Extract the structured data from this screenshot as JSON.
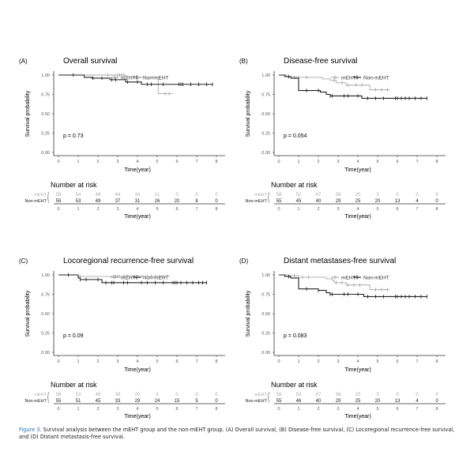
{
  "colors": {
    "mEHT": "#a8a8a8",
    "Non-mEHT": "#222222",
    "figure_label": "#2a6ebb"
  },
  "caption": {
    "label": "Figure 3.",
    "text": "Survival analysis between the mEHT group and the non-mEHT group. (A) Overall survival, (B) Disease-free survival, (C) Locoregional recurrence-free survival, and (D) Distant metastasis-free survival."
  },
  "chart_data": [
    {
      "type": "line",
      "panel": "(A)",
      "title": "Overall survival",
      "xlabel": "Time(year)",
      "ylabel": "Survival probability",
      "xlim": [
        0,
        8
      ],
      "ylim": [
        0,
        1
      ],
      "xticks": [
        "0",
        "1",
        "2",
        "3",
        "4",
        "5",
        "6",
        "7",
        "8"
      ],
      "yticks": [
        "0.00",
        "0.25",
        "0.50",
        "0.75",
        "1.00"
      ],
      "legend": "top",
      "grid": false,
      "p_value": "p = 0.73",
      "series": [
        {
          "name": "mEHT",
          "steps": [
            [
              0,
              1.0
            ],
            [
              3.4,
              0.97
            ],
            [
              5.05,
              0.76
            ]
          ],
          "end": 5.8,
          "censored": [
            2.5,
            3.0,
            3.1,
            3.2,
            3.3,
            3.5,
            3.6,
            3.8,
            4.0,
            4.3,
            4.8,
            5.4,
            5.6
          ]
        },
        {
          "name": "Non-mEHT",
          "steps": [
            [
              0,
              1.0
            ],
            [
              1.3,
              0.97
            ],
            [
              1.7,
              0.96
            ],
            [
              2.6,
              0.94
            ],
            [
              3.4,
              0.91
            ],
            [
              4.2,
              0.88
            ]
          ],
          "end": 7.8,
          "censored": [
            0.75,
            1.75,
            2.2,
            2.7,
            2.9,
            3.5,
            4.0,
            4.5,
            4.7,
            5.3,
            6.1,
            6.2,
            6.3,
            6.7,
            7.1,
            7.5,
            7.8
          ]
        }
      ],
      "risk_table": {
        "title": "Number at risk",
        "rows": [
          {
            "name": "mEHT",
            "values": [
              58,
              54,
              49,
              44,
              34,
              11,
              0,
              0,
              0
            ]
          },
          {
            "name": "Non-mEHT",
            "values": [
              55,
              53,
              49,
              37,
              31,
              26,
              20,
              8,
              0
            ]
          }
        ]
      }
    },
    {
      "type": "line",
      "panel": "(B)",
      "title": "Disease-free survival",
      "xlabel": "Time(year)",
      "ylabel": "Survival probability",
      "xlim": [
        0,
        8
      ],
      "ylim": [
        0,
        1
      ],
      "xticks": [
        "0",
        "1",
        "2",
        "3",
        "4",
        "5",
        "6",
        "7",
        "8"
      ],
      "yticks": [
        "0.00",
        "0.25",
        "0.50",
        "0.75",
        "1.00"
      ],
      "legend": "top",
      "grid": false,
      "p_value": "p = 0.054",
      "series": [
        {
          "name": "mEHT",
          "steps": [
            [
              0,
              1.0
            ],
            [
              0.4,
              0.98
            ],
            [
              0.8,
              0.97
            ],
            [
              2.2,
              0.95
            ],
            [
              2.6,
              0.93
            ],
            [
              2.9,
              0.9
            ],
            [
              3.4,
              0.87
            ],
            [
              4.6,
              0.81
            ]
          ],
          "end": 5.6,
          "censored": [
            0.8,
            1.0,
            1.4,
            2.8,
            3.2,
            3.5,
            3.9,
            4.2,
            4.9,
            5.2,
            5.5
          ]
        },
        {
          "name": "Non-mEHT",
          "steps": [
            [
              0,
              1.0
            ],
            [
              0.3,
              0.98
            ],
            [
              0.6,
              0.96
            ],
            [
              1.0,
              0.8
            ],
            [
              2.1,
              0.78
            ],
            [
              2.4,
              0.75
            ],
            [
              2.6,
              0.73
            ],
            [
              4.2,
              0.7
            ]
          ],
          "end": 7.5,
          "censored": [
            0.5,
            1.4,
            2.0,
            2.6,
            2.7,
            3.3,
            3.5,
            4.0,
            4.5,
            4.9,
            5.3,
            5.9,
            6.0,
            6.2,
            6.4,
            6.6,
            6.9,
            7.2,
            7.5
          ]
        }
      ],
      "risk_table": {
        "title": "Number at risk",
        "rows": [
          {
            "name": "mEHT",
            "values": [
              58,
              52,
              47,
              38,
              20,
              3,
              0,
              0,
              0
            ]
          },
          {
            "name": "Non-mEHT",
            "values": [
              55,
              45,
              40,
              29,
              25,
              20,
              13,
              4,
              0
            ]
          }
        ]
      }
    },
    {
      "type": "line",
      "panel": "(C)",
      "title": "Locoregional recurrence-free survival",
      "xlabel": "Time(year)",
      "ylabel": "Survival probability",
      "xlim": [
        0,
        8
      ],
      "ylim": [
        0,
        1
      ],
      "xticks": [
        "0",
        "1",
        "2",
        "3",
        "4",
        "5",
        "6",
        "7",
        "8"
      ],
      "yticks": [
        "0.00",
        "0.25",
        "0.50",
        "0.75",
        "1.00"
      ],
      "legend": "top",
      "grid": false,
      "p_value": "p = 0.09",
      "series": [
        {
          "name": "mEHT",
          "steps": [
            [
              0,
              1.0
            ],
            [
              1.0,
              0.98
            ]
          ],
          "end": 5.6,
          "censored": [
            1.1,
            2.8,
            2.9,
            3.0,
            3.1,
            3.3,
            3.4,
            3.5,
            3.6,
            3.8,
            4.0,
            4.2,
            4.5,
            4.7,
            4.9,
            5.3,
            5.5
          ]
        },
        {
          "name": "Non-mEHT",
          "steps": [
            [
              0,
              1.0
            ],
            [
              1.0,
              0.96
            ],
            [
              1.1,
              0.94
            ],
            [
              2.2,
              0.9
            ]
          ],
          "end": 7.5,
          "censored": [
            0.5,
            1.1,
            1.4,
            2.0,
            2.4,
            2.7,
            2.8,
            3.3,
            3.5,
            4.2,
            4.5,
            4.9,
            5.3,
            5.8,
            5.9,
            6.0,
            6.2,
            6.5,
            6.8,
            7.1,
            7.3,
            7.5
          ]
        }
      ],
      "risk_table": {
        "title": "Number at risk",
        "rows": [
          {
            "name": "mEHT",
            "values": [
              58,
              53,
              48,
              38,
              20,
              4,
              0,
              0,
              0
            ]
          },
          {
            "name": "Non-mEHT",
            "values": [
              55,
              51,
              45,
              33,
              29,
              24,
              15,
              5,
              0
            ]
          }
        ]
      }
    },
    {
      "type": "line",
      "panel": "(D)",
      "title": "Distant metastases-free survival",
      "xlabel": "Time(year)",
      "ylabel": "Survival probability",
      "xlim": [
        0,
        8
      ],
      "ylim": [
        0,
        1
      ],
      "xticks": [
        "0",
        "1",
        "2",
        "3",
        "4",
        "5",
        "6",
        "7",
        "8"
      ],
      "yticks": [
        "0.00",
        "0.25",
        "0.50",
        "0.75",
        "1.00"
      ],
      "legend": "top",
      "grid": false,
      "p_value": "p = 0.083",
      "series": [
        {
          "name": "mEHT",
          "steps": [
            [
              0,
              1.0
            ],
            [
              0.5,
              0.99
            ],
            [
              1.0,
              0.97
            ],
            [
              2.4,
              0.95
            ],
            [
              2.7,
              0.93
            ],
            [
              2.8,
              0.9
            ],
            [
              3.4,
              0.87
            ],
            [
              4.6,
              0.81
            ]
          ],
          "end": 5.6,
          "censored": [
            0.8,
            1.2,
            1.5,
            2.9,
            3.2,
            3.5,
            3.8,
            4.1,
            4.9,
            5.2,
            5.5
          ]
        },
        {
          "name": "Non-mEHT",
          "steps": [
            [
              0,
              1.0
            ],
            [
              0.3,
              0.98
            ],
            [
              0.6,
              0.96
            ],
            [
              1.0,
              0.82
            ],
            [
              2.0,
              0.8
            ],
            [
              2.4,
              0.77
            ],
            [
              2.6,
              0.75
            ],
            [
              4.3,
              0.72
            ]
          ],
          "end": 7.5,
          "censored": [
            0.5,
            1.4,
            2.0,
            2.6,
            2.7,
            3.3,
            3.5,
            4.0,
            4.5,
            4.9,
            5.3,
            5.9,
            6.0,
            6.2,
            6.4,
            6.6,
            6.9,
            7.2,
            7.5
          ]
        }
      ],
      "risk_table": {
        "title": "Number at risk",
        "rows": [
          {
            "name": "mEHT",
            "values": [
              58,
              53,
              47,
              36,
              20,
              3,
              0,
              0,
              0
            ]
          },
          {
            "name": "Non-mEHT",
            "values": [
              55,
              46,
              40,
              29,
              25,
              20,
              13,
              4,
              0
            ]
          }
        ]
      }
    }
  ]
}
